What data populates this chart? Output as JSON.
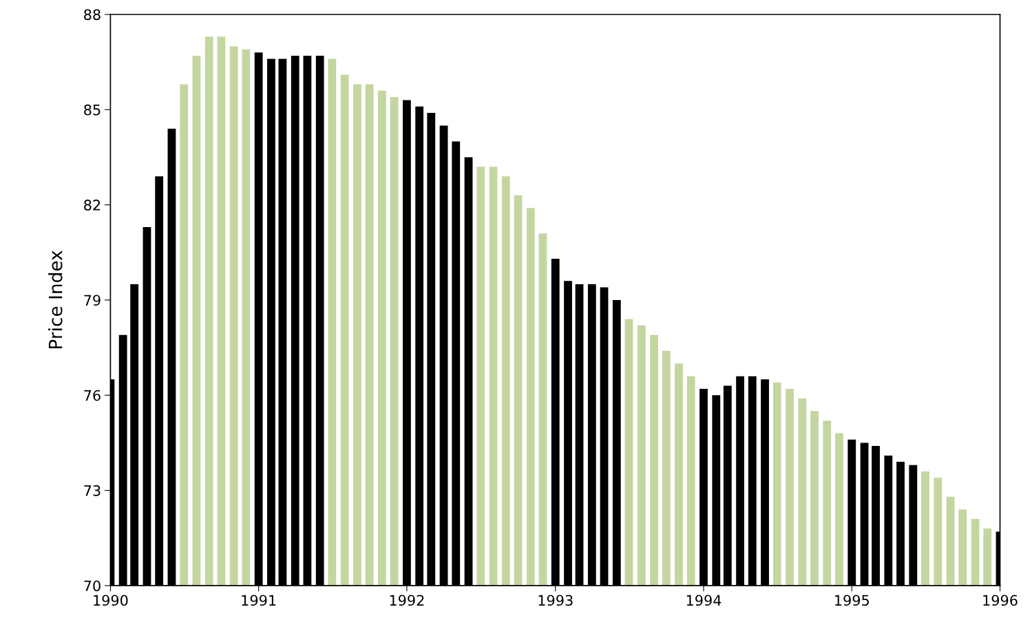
{
  "chart_data": {
    "type": "bar",
    "ylabel": "Price Index",
    "x": [
      "1990-01",
      "1990-02",
      "1990-03",
      "1990-04",
      "1990-05",
      "1990-06",
      "1990-07",
      "1990-08",
      "1990-09",
      "1990-10",
      "1990-11",
      "1990-12",
      "1991-01",
      "1991-02",
      "1991-03",
      "1991-04",
      "1991-05",
      "1991-06",
      "1991-07",
      "1991-08",
      "1991-09",
      "1991-10",
      "1991-11",
      "1991-12",
      "1992-01",
      "1992-02",
      "1992-03",
      "1992-04",
      "1992-05",
      "1992-06",
      "1992-07",
      "1992-08",
      "1992-09",
      "1992-10",
      "1992-11",
      "1992-12",
      "1993-01",
      "1993-02",
      "1993-03",
      "1993-04",
      "1993-05",
      "1993-06",
      "1993-07",
      "1993-08",
      "1993-09",
      "1993-10",
      "1993-11",
      "1993-12",
      "1994-01",
      "1994-02",
      "1994-03",
      "1994-04",
      "1994-05",
      "1994-06",
      "1994-07",
      "1994-08",
      "1994-09",
      "1994-10",
      "1994-11",
      "1994-12",
      "1995-01",
      "1995-02",
      "1995-03",
      "1995-04",
      "1995-05",
      "1995-06",
      "1995-07",
      "1995-08",
      "1995-09",
      "1995-10",
      "1995-11",
      "1995-12",
      "1996-01"
    ],
    "values": [
      76.5,
      77.9,
      79.5,
      81.3,
      82.9,
      84.4,
      85.8,
      86.7,
      87.3,
      87.3,
      87.0,
      86.9,
      86.8,
      86.6,
      86.6,
      86.7,
      86.7,
      86.7,
      86.6,
      86.1,
      85.8,
      85.8,
      85.6,
      85.4,
      85.3,
      85.1,
      84.9,
      84.5,
      84.0,
      83.5,
      83.2,
      83.2,
      82.9,
      82.3,
      81.9,
      81.1,
      80.3,
      79.6,
      79.5,
      79.5,
      79.4,
      79.0,
      78.4,
      78.2,
      77.9,
      77.4,
      77.0,
      76.6,
      76.2,
      76.0,
      76.3,
      76.6,
      76.6,
      76.5,
      76.4,
      76.2,
      75.9,
      75.5,
      75.2,
      74.8,
      74.6,
      74.5,
      74.4,
      74.1,
      73.9,
      73.8,
      73.6,
      73.4,
      72.8,
      72.4,
      72.1,
      71.8,
      71.7
    ],
    "colors": [
      "#000000",
      "#000000",
      "#000000",
      "#000000",
      "#000000",
      "#000000",
      "#c4d6a0",
      "#c4d6a0",
      "#c4d6a0",
      "#c4d6a0",
      "#c4d6a0",
      "#c4d6a0",
      "#000000",
      "#000000",
      "#000000",
      "#000000",
      "#000000",
      "#000000",
      "#c4d6a0",
      "#c4d6a0",
      "#c4d6a0",
      "#c4d6a0",
      "#c4d6a0",
      "#c4d6a0",
      "#000000",
      "#000000",
      "#000000",
      "#000000",
      "#000000",
      "#000000",
      "#c4d6a0",
      "#c4d6a0",
      "#c4d6a0",
      "#c4d6a0",
      "#c4d6a0",
      "#c4d6a0",
      "#000000",
      "#000000",
      "#000000",
      "#000000",
      "#000000",
      "#000000",
      "#c4d6a0",
      "#c4d6a0",
      "#c4d6a0",
      "#c4d6a0",
      "#c4d6a0",
      "#c4d6a0",
      "#000000",
      "#000000",
      "#000000",
      "#000000",
      "#000000",
      "#000000",
      "#c4d6a0",
      "#c4d6a0",
      "#c4d6a0",
      "#c4d6a0",
      "#c4d6a0",
      "#c4d6a0",
      "#000000",
      "#000000",
      "#000000",
      "#000000",
      "#000000",
      "#000000",
      "#c4d6a0",
      "#c4d6a0",
      "#c4d6a0",
      "#c4d6a0",
      "#c4d6a0",
      "#c4d6a0",
      "#000000"
    ],
    "xlim": [
      "1990-01",
      "1996-01"
    ],
    "xticks": [
      {
        "value": "1990-01",
        "label": "1990"
      },
      {
        "value": "1991-01",
        "label": "1991"
      },
      {
        "value": "1992-01",
        "label": "1992"
      },
      {
        "value": "1993-01",
        "label": "1993"
      },
      {
        "value": "1994-01",
        "label": "1994"
      },
      {
        "value": "1995-01",
        "label": "1995"
      },
      {
        "value": "1996-01",
        "label": "1996"
      }
    ],
    "ylim": [
      70,
      88
    ],
    "yticks": [
      70,
      73,
      76,
      79,
      82,
      85,
      88
    ],
    "grid": false,
    "legend": false
  }
}
